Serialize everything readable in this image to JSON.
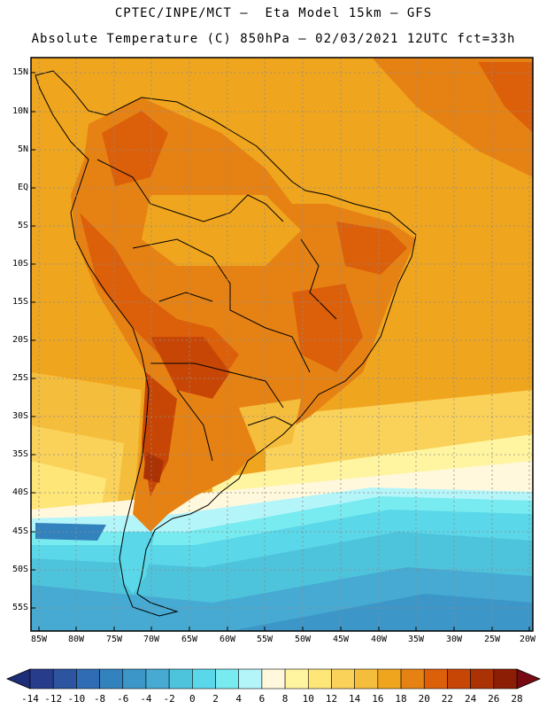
{
  "title": {
    "line1": "CPTEC/INPE/MCT –  Eta Model 15km – GFS",
    "line2": "Absolute Temperature (C) 850hPa – 02/03/2021 12UTC fct=33h"
  },
  "map": {
    "region": "South America",
    "lat_labels": [
      "15N",
      "10N",
      "5N",
      "EQ",
      "5S",
      "10S",
      "15S",
      "20S",
      "25S",
      "30S",
      "35S",
      "40S",
      "45S",
      "50S",
      "55S"
    ],
    "lon_labels": [
      "85W",
      "80W",
      "75W",
      "70W",
      "65W",
      "60W",
      "55W",
      "50W",
      "45W",
      "40W",
      "35W",
      "30W",
      "25W",
      "20W"
    ]
  },
  "colorbar": {
    "labels": [
      "-14",
      "-12",
      "-10",
      "-8",
      "-6",
      "-4",
      "-2",
      "0",
      "2",
      "4",
      "6",
      "8",
      "10",
      "12",
      "14",
      "16",
      "18",
      "20",
      "22",
      "24",
      "26",
      "28"
    ],
    "colors": [
      "#283c8c",
      "#2c54a0",
      "#2f6cb4",
      "#3282be",
      "#3c96c8",
      "#46aad2",
      "#4ec3dc",
      "#5ad7e8",
      "#78ebf0",
      "#b4f5fa",
      "#fff8dc",
      "#fff5a0",
      "#ffe678",
      "#fad25a",
      "#f5bd3c",
      "#f0a51e",
      "#e68214",
      "#dc5f0a",
      "#c84605",
      "#aa3205",
      "#8c1e05"
    ],
    "under_color": "#1e2d78",
    "over_color": "#780a14"
  }
}
